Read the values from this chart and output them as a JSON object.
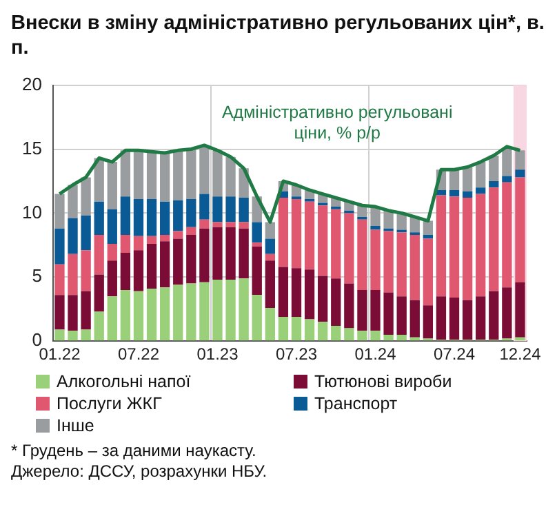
{
  "chart_data": {
    "type": "bar",
    "title": "Внески в зміну адміністративно регульованих цін*, в. п.",
    "categories": [
      "01.22",
      null,
      null,
      null,
      null,
      null,
      "07.22",
      null,
      null,
      null,
      null,
      null,
      "01.23",
      null,
      null,
      null,
      null,
      null,
      "07.23",
      null,
      null,
      null,
      null,
      null,
      "01.24",
      null,
      null,
      null,
      null,
      null,
      "07.24",
      null,
      null,
      null,
      null,
      "12.24"
    ],
    "stacked": true,
    "ylim": [
      0,
      20
    ],
    "yticks": [
      0,
      5,
      10,
      15,
      20
    ],
    "grid": true,
    "legend": "bottom",
    "series": [
      {
        "name": "Алкогольні напої",
        "color": "#9bd07a",
        "values": [
          0.9,
          0.8,
          0.9,
          2.3,
          3.5,
          4.0,
          3.9,
          4.1,
          4.2,
          4.4,
          4.5,
          4.6,
          4.8,
          4.8,
          4.9,
          3.6,
          2.6,
          1.9,
          1.9,
          1.7,
          1.5,
          1.2,
          1.0,
          0.8,
          0.8,
          0.5,
          0.5,
          0.3,
          0.2,
          0.1,
          0.1,
          0.1,
          0.1,
          0.1,
          0.2,
          0.3
        ]
      },
      {
        "name": "Тютюнові вироби",
        "color": "#7a0c35",
        "values": [
          2.7,
          2.8,
          3.0,
          2.9,
          2.8,
          2.9,
          3.2,
          3.5,
          3.6,
          3.6,
          3.8,
          4.2,
          4.1,
          4.1,
          3.9,
          3.8,
          3.7,
          3.9,
          3.8,
          3.9,
          3.6,
          3.7,
          3.5,
          3.2,
          3.2,
          3.3,
          3.0,
          2.9,
          2.6,
          3.4,
          3.3,
          3.1,
          3.4,
          3.8,
          4.0,
          4.3
        ]
      },
      {
        "name": "Послуги ЖКГ",
        "color": "#e05770",
        "values": [
          2.4,
          3.2,
          3.2,
          3.1,
          1.3,
          1.4,
          1.1,
          0.6,
          0.5,
          0.6,
          0.6,
          0.7,
          0.4,
          0.4,
          0.5,
          0.3,
          0.5,
          5.4,
          5.4,
          5.3,
          5.5,
          5.4,
          5.5,
          5.5,
          4.7,
          4.8,
          5.0,
          5.1,
          5.2,
          7.9,
          7.9,
          8.0,
          8.0,
          8.1,
          8.2,
          8.2
        ]
      },
      {
        "name": "Транспорт",
        "color": "#0a5a96",
        "values": [
          2.8,
          2.8,
          2.7,
          2.6,
          2.7,
          3.0,
          2.9,
          2.9,
          2.6,
          2.4,
          2.2,
          2.0,
          2.0,
          2.0,
          1.9,
          1.6,
          1.2,
          0.5,
          0.2,
          0.2,
          0.2,
          0.2,
          0.2,
          0.2,
          0.3,
          0.2,
          0.2,
          0.2,
          0.3,
          0.4,
          0.5,
          0.5,
          0.5,
          0.5,
          0.5,
          0.6
        ]
      },
      {
        "name": "Інше",
        "color": "#9a9da0",
        "values": [
          2.7,
          2.6,
          3.0,
          3.4,
          3.7,
          3.6,
          3.8,
          3.7,
          3.8,
          3.9,
          3.9,
          3.8,
          3.6,
          3.1,
          2.3,
          2.0,
          1.3,
          0.8,
          0.9,
          0.7,
          0.7,
          0.7,
          0.7,
          0.9,
          1.5,
          1.4,
          1.3,
          1.2,
          1.1,
          1.6,
          1.6,
          1.9,
          2.0,
          2.0,
          2.2,
          1.5
        ]
      },
      {
        "name": "Адміністративно регульовані ціни, % р/р",
        "type": "line",
        "color": "#1f7a45",
        "values": [
          11.5,
          12.2,
          12.8,
          14.3,
          14.0,
          14.9,
          14.9,
          14.8,
          14.7,
          14.9,
          15.0,
          15.3,
          14.9,
          14.4,
          13.5,
          11.3,
          9.3,
          12.5,
          12.2,
          11.8,
          11.5,
          11.2,
          10.9,
          10.6,
          10.5,
          10.2,
          10.0,
          9.7,
          9.4,
          13.4,
          13.4,
          13.6,
          14.0,
          14.5,
          15.2,
          14.9
        ]
      }
    ],
    "bands": [
      {
        "axis": "x",
        "from": "12.24",
        "to": "12.24",
        "color": "#f8d7e3"
      }
    ],
    "annotations": [
      "* Грудень – за даними наукасту.",
      "Джерело: ДССУ, розрахунки НБУ."
    ]
  }
}
